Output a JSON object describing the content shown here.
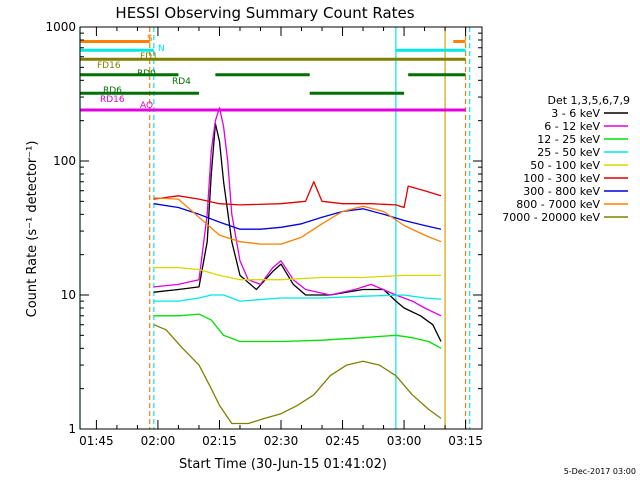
{
  "chart_data": {
    "type": "line",
    "title": "HESSI Observing Summary Count Rates",
    "xlabel": "Start Time (30-Jun-15 01:41:02)",
    "ylabel": "Count Rate (s⁻¹ detector⁻¹)",
    "date_stamp": "5-Dec-2017 03:00",
    "xscale": "time",
    "yscale": "log",
    "xlim": [
      "01:41",
      "03:19"
    ],
    "ylim": [
      1,
      1000
    ],
    "x_ticks": [
      "01:45",
      "02:00",
      "02:15",
      "02:30",
      "02:45",
      "03:00",
      "03:15"
    ],
    "y_ticks": [
      "1",
      "10",
      "100",
      "1000"
    ],
    "legend": {
      "title": "Det 1,3,5,6,7,9",
      "placement": "right"
    },
    "series": [
      {
        "name": "3 - 6 keV",
        "color": "#000000",
        "points": [
          [
            "01:59",
            10.5
          ],
          [
            "02:05",
            11
          ],
          [
            "02:10",
            11.5
          ],
          [
            "02:12",
            25
          ],
          [
            "02:13",
            80
          ],
          [
            "02:14",
            190
          ],
          [
            "02:15",
            140
          ],
          [
            "02:16",
            70
          ],
          [
            "02:18",
            25
          ],
          [
            "02:20",
            14
          ],
          [
            "02:24",
            11
          ],
          [
            "02:28",
            15
          ],
          [
            "02:30",
            17
          ],
          [
            "02:33",
            12
          ],
          [
            "02:36",
            10
          ],
          [
            "02:42",
            10
          ],
          [
            "02:50",
            11
          ],
          [
            "02:55",
            11
          ],
          [
            "02:58",
            9
          ],
          [
            "03:00",
            8
          ],
          [
            "03:04",
            7
          ],
          [
            "03:07",
            6
          ],
          [
            "03:09",
            4.5
          ]
        ]
      },
      {
        "name": "6 - 12 keV",
        "color": "#e000e0",
        "points": [
          [
            "01:59",
            11.5
          ],
          [
            "02:05",
            12
          ],
          [
            "02:10",
            13
          ],
          [
            "02:12",
            40
          ],
          [
            "02:13",
            120
          ],
          [
            "02:14",
            200
          ],
          [
            "02:15",
            250
          ],
          [
            "02:16",
            180
          ],
          [
            "02:17",
            100
          ],
          [
            "02:18",
            40
          ],
          [
            "02:20",
            18
          ],
          [
            "02:22",
            13
          ],
          [
            "02:25",
            12
          ],
          [
            "02:28",
            16
          ],
          [
            "02:30",
            18
          ],
          [
            "02:33",
            13
          ],
          [
            "02:36",
            11
          ],
          [
            "02:42",
            10
          ],
          [
            "02:48",
            11
          ],
          [
            "02:52",
            12
          ],
          [
            "02:58",
            10
          ],
          [
            "03:02",
            9
          ],
          [
            "03:05",
            8
          ],
          [
            "03:09",
            7
          ]
        ]
      },
      {
        "name": "12 - 25 keV",
        "color": "#00e000",
        "points": [
          [
            "01:59",
            7
          ],
          [
            "02:05",
            7
          ],
          [
            "02:10",
            7.2
          ],
          [
            "02:13",
            6.5
          ],
          [
            "02:16",
            5
          ],
          [
            "02:20",
            4.5
          ],
          [
            "02:30",
            4.5
          ],
          [
            "02:40",
            4.6
          ],
          [
            "02:50",
            4.8
          ],
          [
            "02:58",
            5
          ],
          [
            "03:02",
            4.8
          ],
          [
            "03:06",
            4.5
          ],
          [
            "03:09",
            4
          ]
        ]
      },
      {
        "name": "25 - 50 keV",
        "color": "#00e8e8",
        "points": [
          [
            "01:59",
            9
          ],
          [
            "02:05",
            9
          ],
          [
            "02:10",
            9.5
          ],
          [
            "02:13",
            10
          ],
          [
            "02:16",
            10
          ],
          [
            "02:20",
            9
          ],
          [
            "02:30",
            9.5
          ],
          [
            "02:40",
            9.5
          ],
          [
            "02:50",
            9.8
          ],
          [
            "03:00",
            10
          ],
          [
            "03:05",
            9.5
          ],
          [
            "03:09",
            9.3
          ]
        ]
      },
      {
        "name": "50 - 100 keV",
        "color": "#d8d800",
        "points": [
          [
            "01:59",
            16
          ],
          [
            "02:05",
            16
          ],
          [
            "02:10",
            15.5
          ],
          [
            "02:15",
            14
          ],
          [
            "02:20",
            13
          ],
          [
            "02:30",
            13
          ],
          [
            "02:40",
            13.5
          ],
          [
            "02:50",
            13.5
          ],
          [
            "03:00",
            14
          ],
          [
            "03:05",
            14
          ],
          [
            "03:09",
            14
          ]
        ]
      },
      {
        "name": "100 - 300 keV",
        "color": "#e00000",
        "points": [
          [
            "01:59",
            52
          ],
          [
            "02:05",
            55
          ],
          [
            "02:10",
            52
          ],
          [
            "02:15",
            48
          ],
          [
            "02:20",
            47
          ],
          [
            "02:30",
            48
          ],
          [
            "02:36",
            50
          ],
          [
            "02:38",
            70
          ],
          [
            "02:40",
            50
          ],
          [
            "02:45",
            48
          ],
          [
            "02:52",
            48
          ],
          [
            "02:58",
            47
          ],
          [
            "03:00",
            45
          ],
          [
            "03:01",
            65
          ],
          [
            "03:05",
            60
          ],
          [
            "03:09",
            55
          ]
        ]
      },
      {
        "name": "300 - 800 keV",
        "color": "#0000e0",
        "points": [
          [
            "01:59",
            48
          ],
          [
            "02:05",
            45
          ],
          [
            "02:10",
            40
          ],
          [
            "02:15",
            35
          ],
          [
            "02:20",
            31
          ],
          [
            "02:25",
            31
          ],
          [
            "02:30",
            32
          ],
          [
            "02:35",
            34
          ],
          [
            "02:40",
            38
          ],
          [
            "02:45",
            42
          ],
          [
            "02:50",
            44
          ],
          [
            "02:55",
            40
          ],
          [
            "03:00",
            36
          ],
          [
            "03:05",
            33
          ],
          [
            "03:09",
            31
          ]
        ]
      },
      {
        "name": "800 - 7000 keV",
        "color": "#ff8000",
        "points": [
          [
            "01:59",
            53
          ],
          [
            "02:05",
            52
          ],
          [
            "02:10",
            38
          ],
          [
            "02:15",
            28
          ],
          [
            "02:20",
            25
          ],
          [
            "02:25",
            24
          ],
          [
            "02:30",
            24
          ],
          [
            "02:35",
            27
          ],
          [
            "02:40",
            34
          ],
          [
            "02:45",
            42
          ],
          [
            "02:50",
            46
          ],
          [
            "02:55",
            42
          ],
          [
            "03:00",
            33
          ],
          [
            "03:05",
            28
          ],
          [
            "03:09",
            25
          ]
        ]
      },
      {
        "name": "7000 - 20000 keV",
        "color": "#808000",
        "points": [
          [
            "01:59",
            6
          ],
          [
            "02:02",
            5.5
          ],
          [
            "02:06",
            4
          ],
          [
            "02:10",
            3
          ],
          [
            "02:13",
            2
          ],
          [
            "02:15",
            1.5
          ],
          [
            "02:18",
            1.1
          ],
          [
            "02:22",
            1.1
          ],
          [
            "02:26",
            1.2
          ],
          [
            "02:30",
            1.3
          ],
          [
            "02:34",
            1.5
          ],
          [
            "02:38",
            1.8
          ],
          [
            "02:42",
            2.5
          ],
          [
            "02:46",
            3
          ],
          [
            "02:50",
            3.2
          ],
          [
            "02:54",
            3
          ],
          [
            "02:58",
            2.5
          ],
          [
            "03:02",
            1.8
          ],
          [
            "03:06",
            1.4
          ],
          [
            "03:09",
            1.2
          ]
        ]
      }
    ],
    "state_bars": [
      {
        "label": "S",
        "color": "#ff8000",
        "segments": [
          [
            "01:41",
            "01:58"
          ],
          [
            "03:12",
            "03:15"
          ]
        ],
        "level": 780
      },
      {
        "label": "N",
        "color": "#00e8e8",
        "segments": [
          [
            "01:41",
            "01:59"
          ],
          [
            "02:58",
            "03:15"
          ]
        ],
        "level": 670
      },
      {
        "label": "FD1",
        "color": "#808000",
        "segments": [
          [
            "01:41",
            "03:15"
          ]
        ],
        "level": 575
      },
      {
        "label": "FD16",
        "color": "#808000",
        "segments": [],
        "level": 500
      },
      {
        "label": "RD0",
        "color": "#007000",
        "segments": [
          [
            "01:41",
            "02:05"
          ],
          [
            "02:14",
            "02:37"
          ],
          [
            "03:01",
            "03:15"
          ]
        ],
        "level": 440
      },
      {
        "label": "RD4",
        "color": "#007000",
        "segments": [],
        "level": 370
      },
      {
        "label": "RD6",
        "color": "#007000",
        "segments": [
          [
            "01:41",
            "02:10"
          ],
          [
            "02:37",
            "03:00"
          ]
        ],
        "level": 320
      },
      {
        "label": "RD16",
        "color": "#e000e0",
        "segments": [],
        "level": 270
      },
      {
        "label": "AO",
        "color": "#e000e0",
        "segments": [
          [
            "01:41",
            "03:15"
          ]
        ],
        "level": 240
      }
    ],
    "vertical_markers": [
      {
        "time": "01:41",
        "color": "#00e8e8",
        "style": "solid"
      },
      {
        "time": "01:58",
        "color": "#ff8000",
        "style": "dashed"
      },
      {
        "time": "01:59",
        "color": "#00e8e8",
        "style": "dashed"
      },
      {
        "time": "02:58",
        "color": "#00e8e8",
        "style": "solid"
      },
      {
        "time": "03:10",
        "color": "#d8a000",
        "style": "solid"
      },
      {
        "time": "03:15",
        "color": "#ff8000",
        "style": "dashed"
      },
      {
        "time": "03:16",
        "color": "#00e8e8",
        "style": "dashed"
      }
    ]
  }
}
